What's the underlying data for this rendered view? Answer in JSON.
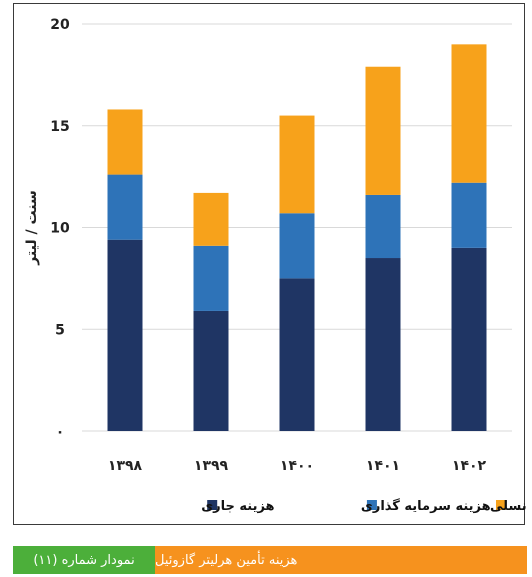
{
  "chart_data": {
    "type": "bar",
    "stacked": true,
    "categories": [
      "۱۳۹۸",
      "۱۳۹۹",
      "۱۴۰۰",
      "۱۴۰۱",
      "۱۴۰۲"
    ],
    "series": [
      {
        "name": "هزینه جاری",
        "color": "#1f3564",
        "values": [
          9.4,
          5.9,
          7.5,
          8.5,
          9.0
        ]
      },
      {
        "name": "هزینه سرمایه گذاری",
        "color": "#2e73b8",
        "values": [
          3.2,
          3.2,
          3.2,
          3.1,
          3.2
        ]
      },
      {
        "name": "سهم بین نسلی",
        "color": "#f7a21b",
        "values": [
          3.2,
          2.6,
          4.8,
          6.3,
          6.8
        ]
      }
    ],
    "ylabel": "سنت / لیتر",
    "ylim": [
      0,
      20
    ],
    "yticks": [
      {
        "value": 0,
        "label": "۰"
      },
      {
        "value": 5,
        "label": "5"
      },
      {
        "value": 10,
        "label": "10"
      },
      {
        "value": 15,
        "label": "15"
      },
      {
        "value": 20,
        "label": "20"
      }
    ],
    "grid": true,
    "legend_position": "bottom"
  },
  "caption": {
    "number": "نمودار شماره (۱۱)",
    "title": "هزینه تأمین هرلیتر گازوئیل"
  }
}
